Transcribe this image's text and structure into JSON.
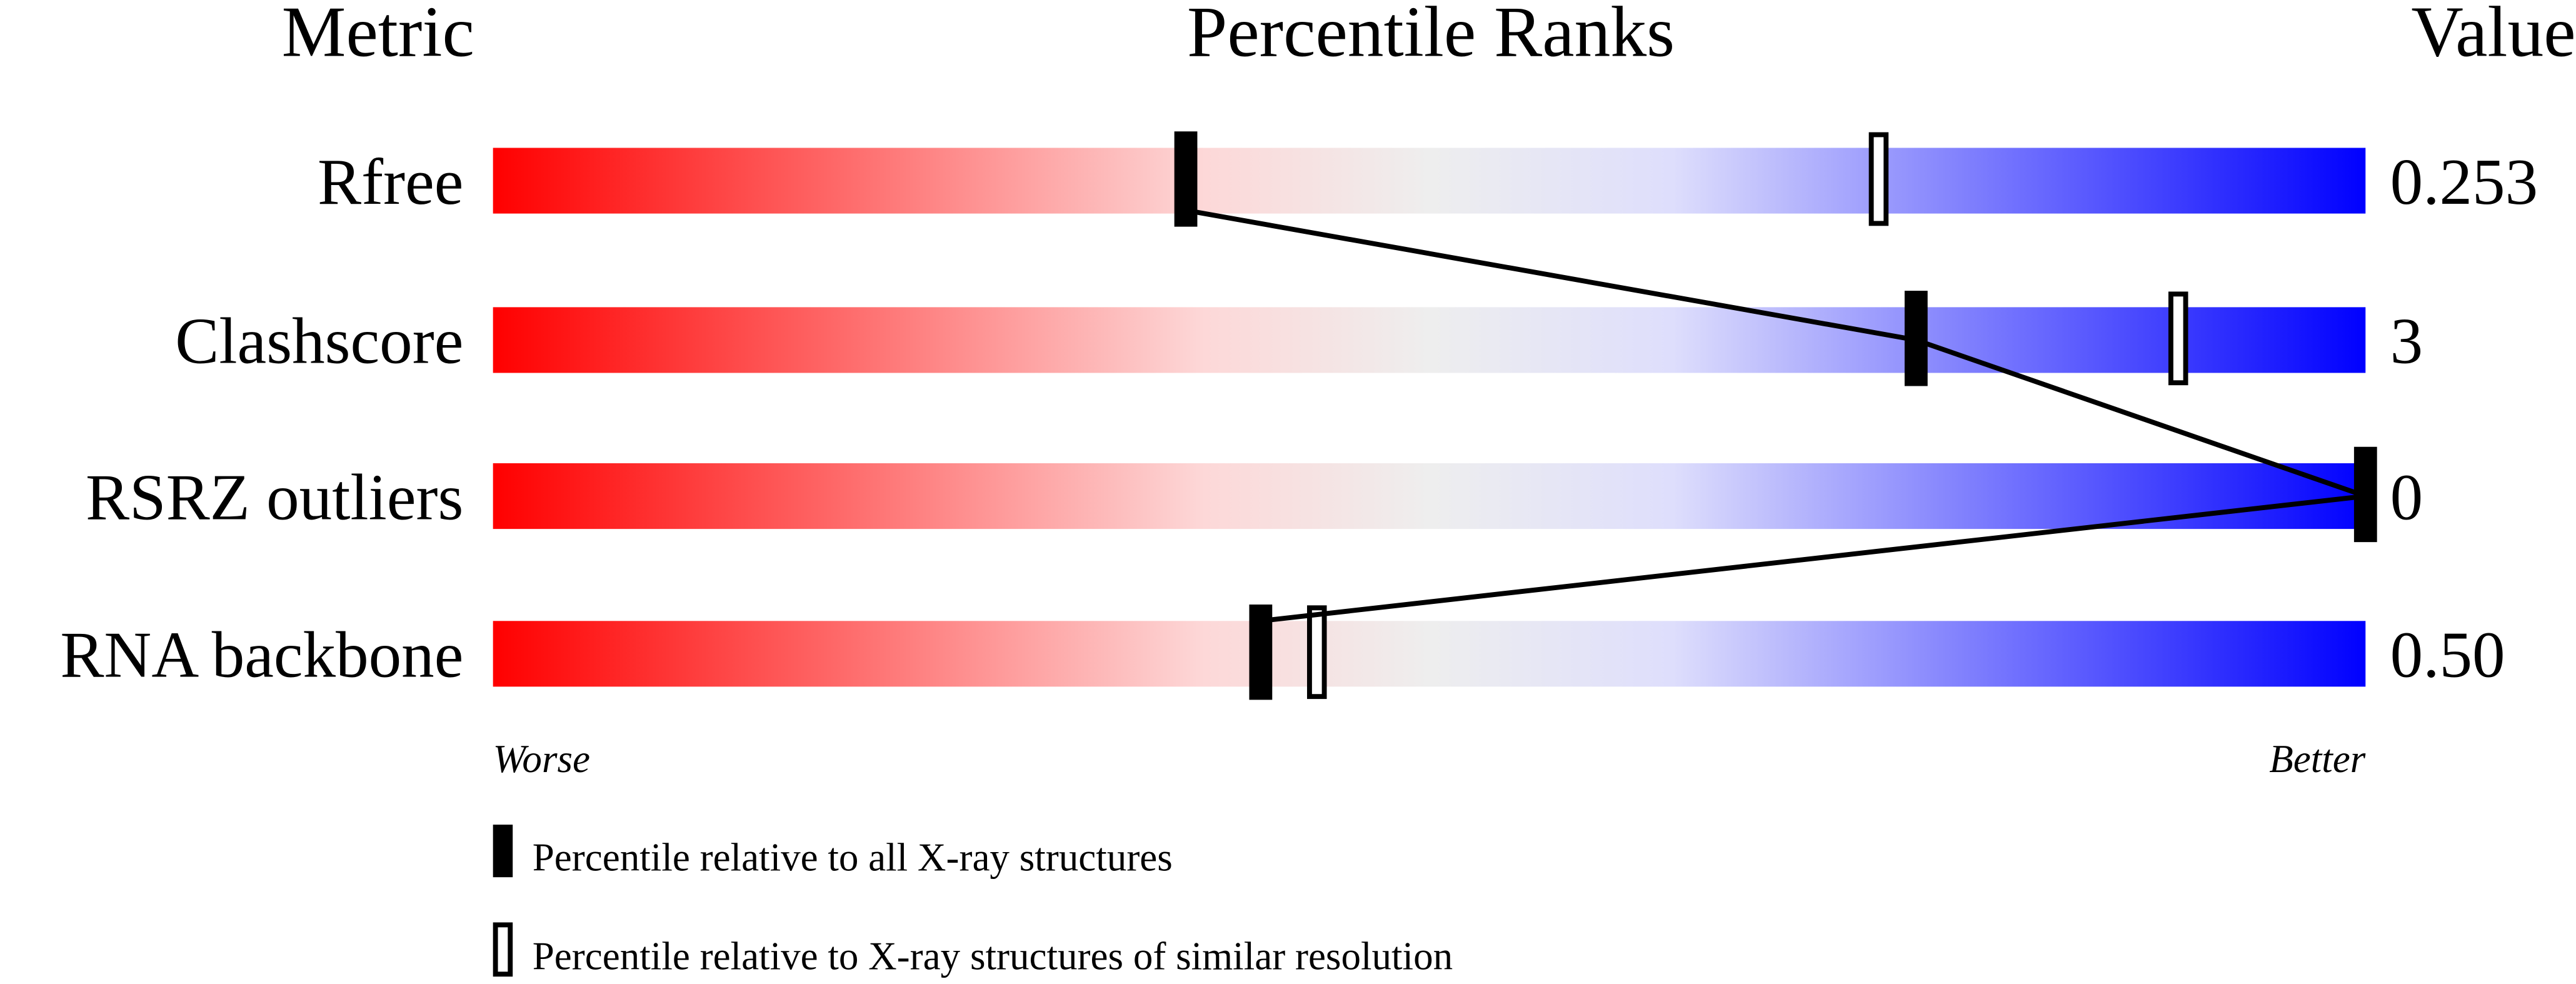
{
  "chart_data": {
    "type": "percentile-ranks",
    "headers": {
      "metric": "Metric",
      "ranks": "Percentile Ranks",
      "value": "Value"
    },
    "xlim": [
      0,
      100
    ],
    "axis_labels": {
      "left": "Worse",
      "right": "Better"
    },
    "colors": {
      "worse": "#ff0000",
      "middle": "#eeeeee",
      "better": "#0000ff",
      "marker": "#000000"
    },
    "metrics": [
      {
        "name": "Rfree",
        "value": "0.253",
        "percentile_all": 37,
        "percentile_similar": 74
      },
      {
        "name": "Clashscore",
        "value": "3",
        "percentile_all": 76,
        "percentile_similar": 90
      },
      {
        "name": "RSRZ outliers",
        "value": "0",
        "percentile_all": 100,
        "percentile_similar": null
      },
      {
        "name": "RNA backbone",
        "value": "0.50",
        "percentile_all": 41,
        "percentile_similar": 44
      }
    ],
    "legend": [
      {
        "marker": "filled",
        "label": "Percentile relative to all X-ray structures"
      },
      {
        "marker": "open",
        "label": "Percentile relative to X-ray structures of similar resolution"
      }
    ]
  }
}
